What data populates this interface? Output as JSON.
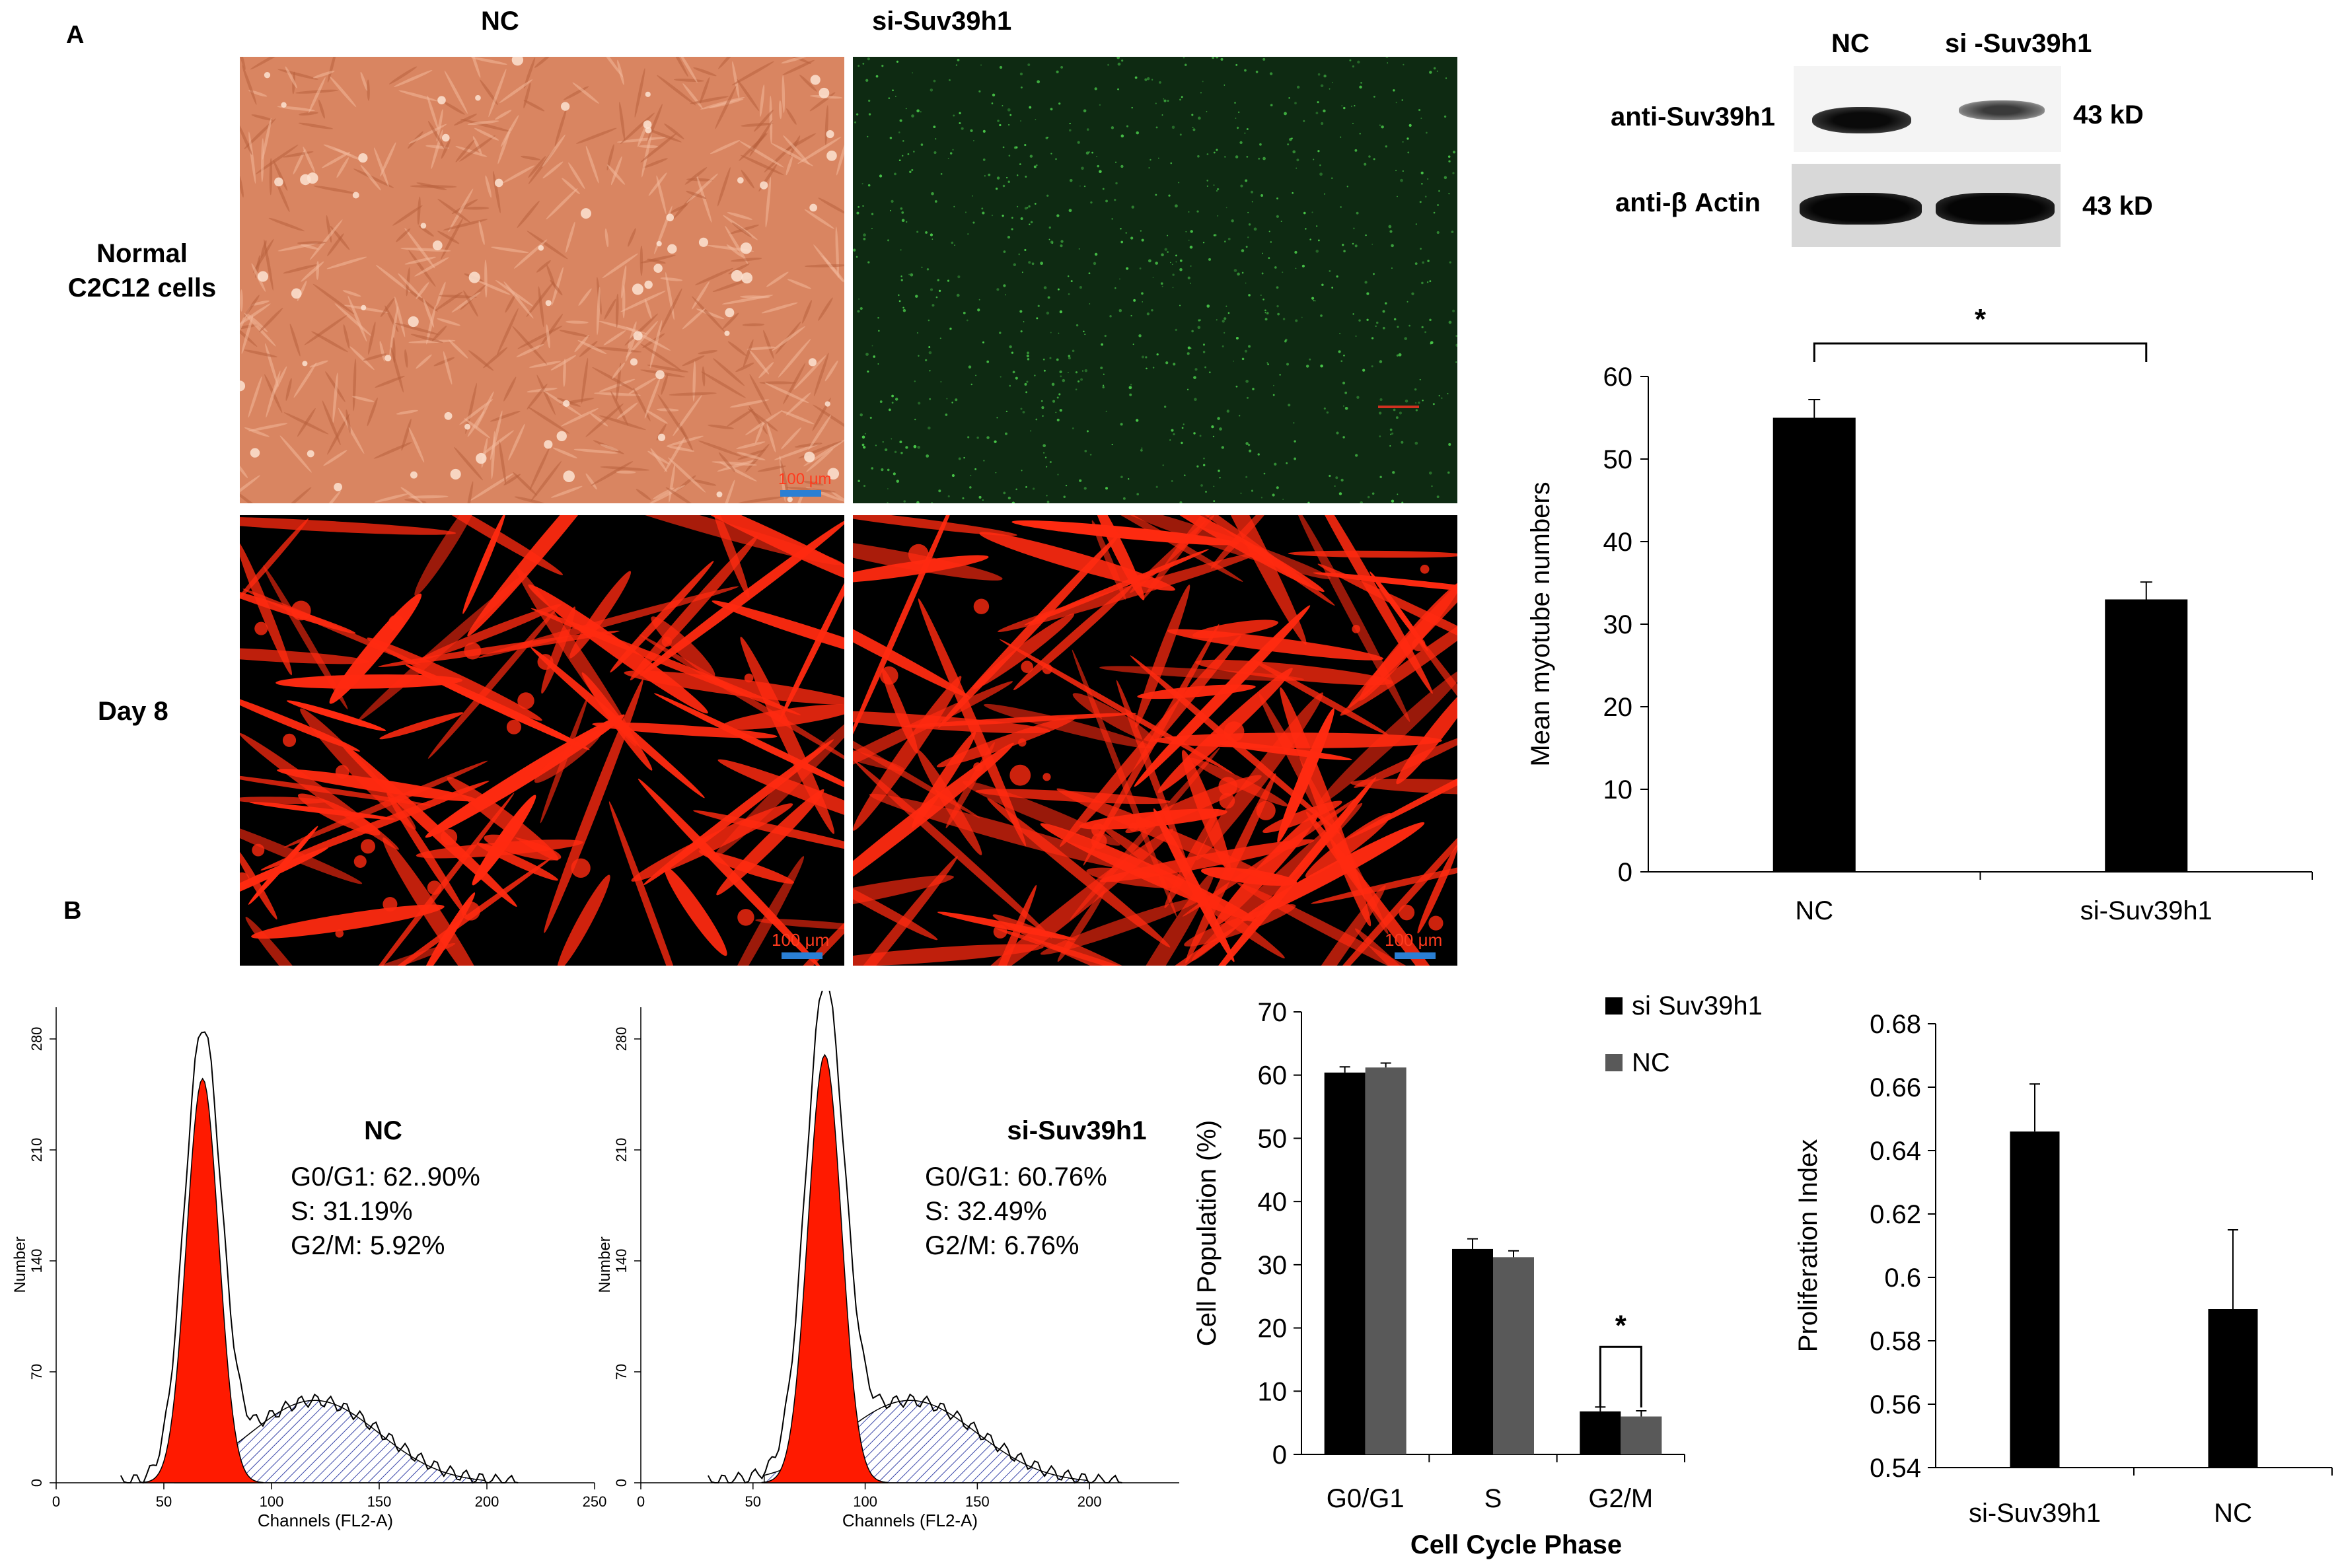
{
  "panel_labels": {
    "a": "A",
    "b": "B"
  },
  "micrographs": {
    "col_headers": [
      "NC",
      "si-Suv39h1"
    ],
    "row_labels": [
      "Normal\nC2C12 cells",
      "Day 8"
    ],
    "scale_bars": [
      "100 μm",
      "100 μm",
      "100 μm"
    ],
    "colors": {
      "brightfield": "#d98561",
      "gfp_bg": "#0e2a12",
      "gfp_dot": "#4cd04c",
      "myotube": "#ff2a10",
      "scalebar": "#2a7fd4",
      "scale_text": "#ff3b1e"
    }
  },
  "western_blot": {
    "lanes": [
      "NC",
      "si -Suv39h1"
    ],
    "rows": [
      {
        "antibody": "anti-Suv39h1",
        "size": "43 kD"
      },
      {
        "antibody": "anti-β Actin",
        "size": "43 kD"
      }
    ]
  },
  "flow_cytometry": [
    {
      "title": "NC",
      "stats": [
        "G0/G1: 62..90%",
        "S: 31.19%",
        "G2/M: 5.92%"
      ],
      "xlabel": "Channels (FL2-A)",
      "ylabel": "Number",
      "xticks": [
        "0",
        "50",
        "100",
        "150",
        "200",
        "250"
      ],
      "yticks": [
        "0",
        "70",
        "140",
        "210",
        "280"
      ]
    },
    {
      "title": "si-Suv39h1",
      "stats": [
        "G0/G1: 60.76%",
        "S: 32.49%",
        "G2/M: 6.76%"
      ],
      "xlabel": "Channels (FL2-A)",
      "ylabel": "Number",
      "xticks": [
        "0",
        "50",
        "100",
        "150",
        "200"
      ],
      "yticks": [
        "0",
        "70",
        "140",
        "210",
        "280"
      ]
    }
  ],
  "chart_data": [
    {
      "type": "bar",
      "categories": [
        "NC",
        "si-Suv39h1"
      ],
      "values": [
        55,
        33
      ],
      "errors": [
        2.2,
        2.1
      ],
      "ylabel": "Mean myotube numbers",
      "ylim": [
        0,
        60
      ],
      "yticks": [
        "0",
        "10",
        "20",
        "30",
        "40",
        "50",
        "60"
      ],
      "significance": "*",
      "bar_color": "#000000"
    },
    {
      "type": "bar",
      "categories": [
        "G0/G1",
        "S",
        "G2/M"
      ],
      "series": [
        {
          "name": "si Suv39h1",
          "values": [
            60.4,
            32.5,
            6.8
          ],
          "errors": [
            0.9,
            1.6,
            0.7
          ],
          "color": "#000000"
        },
        {
          "name": "NC",
          "values": [
            61.2,
            31.2,
            6.0
          ],
          "errors": [
            0.7,
            1.0,
            0.9
          ],
          "color": "#595959"
        }
      ],
      "xlabel": "Cell Cycle Phase",
      "ylabel": "Cell Population (%)",
      "ylim": [
        0,
        70
      ],
      "yticks": [
        "0",
        "10",
        "20",
        "30",
        "40",
        "50",
        "60",
        "70"
      ],
      "significance": "*",
      "legend": "top-right"
    },
    {
      "type": "bar",
      "categories": [
        "si-Suv39h1",
        "NC"
      ],
      "values": [
        0.646,
        0.59
      ],
      "errors": [
        0.015,
        0.025
      ],
      "ylabel": "Proliferation Index",
      "ylim": [
        0.54,
        0.68
      ],
      "yticks": [
        "0.54",
        "0.56",
        "0.58",
        "0.6",
        "0.62",
        "0.64",
        "0.66",
        "0.68"
      ],
      "bar_color": "#000000"
    }
  ]
}
